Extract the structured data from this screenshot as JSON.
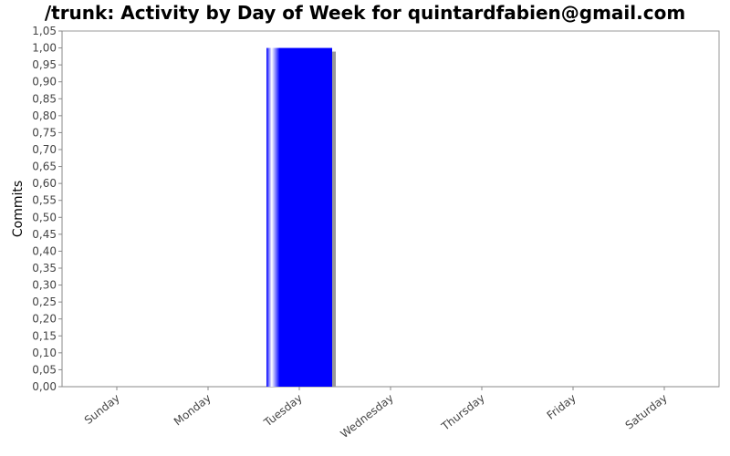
{
  "chart_data": {
    "type": "bar",
    "title": "/trunk: Activity by Day of Week for quintardfabien@gmail.com",
    "xlabel": "",
    "ylabel": "Commits",
    "categories": [
      "Sunday",
      "Monday",
      "Tuesday",
      "Wednesday",
      "Thursday",
      "Friday",
      "Saturday"
    ],
    "values": [
      0,
      0,
      1,
      0,
      0,
      0,
      0
    ],
    "ylim": [
      0,
      1.05
    ],
    "yticks": [
      "0,00",
      "0,05",
      "0,10",
      "0,15",
      "0,20",
      "0,25",
      "0,30",
      "0,35",
      "0,40",
      "0,45",
      "0,50",
      "0,55",
      "0,60",
      "0,65",
      "0,70",
      "0,75",
      "0,80",
      "0,85",
      "0,90",
      "0,95",
      "1,00",
      "1,05"
    ],
    "grid": false,
    "bar_color": "#0000ff",
    "legend": "none"
  }
}
